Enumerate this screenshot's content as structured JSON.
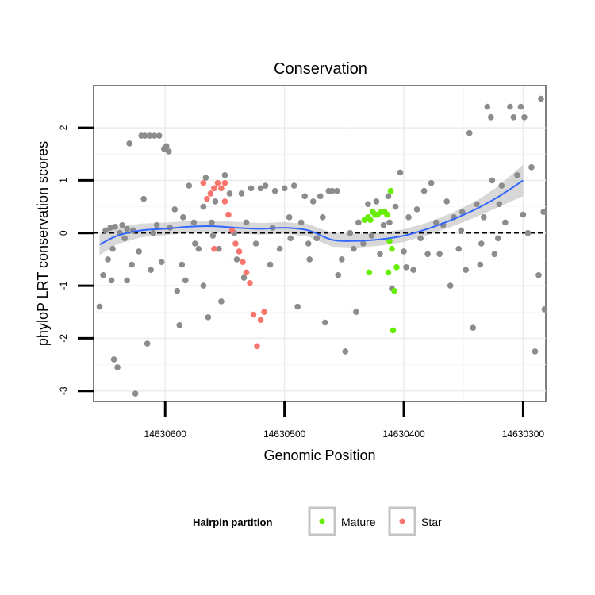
{
  "chart_data": {
    "type": "scatter",
    "title": "Conservation",
    "xlabel": "Genomic Position",
    "ylabel": "phyloP LRT conservation scores",
    "x_reversed": true,
    "xlim": [
      14630660,
      14630281
    ],
    "ylim": [
      -3.2,
      2.8
    ],
    "x_ticks": [
      14630600,
      14630500,
      14630400,
      14630300
    ],
    "x_tick_labels": [
      "14630600",
      "14630500",
      "14630400",
      "14630300"
    ],
    "y_ticks": [
      -3,
      -2,
      -1,
      0,
      1,
      2
    ],
    "y_tick_labels": [
      "-3",
      "-2",
      "-1",
      "0",
      "1",
      "2"
    ],
    "reference_line": {
      "y": 0,
      "style": "dashed"
    },
    "grid": true,
    "legend": {
      "title": "Hairpin partition",
      "position": "bottom",
      "entries": [
        {
          "label": "Mature",
          "color": "#66ee00"
        },
        {
          "label": "Star",
          "color": "#f8766d"
        }
      ]
    },
    "colors": {
      "other": "#8c8c8c",
      "mature": "#66ee00",
      "star": "#f8766d",
      "smooth": "#3366ff",
      "band": "#bebebe"
    },
    "smooth": {
      "x": [
        14630655,
        14630640,
        14630620,
        14630600,
        14630580,
        14630560,
        14630540,
        14630520,
        14630500,
        14630480,
        14630460,
        14630440,
        14630420,
        14630400,
        14630380,
        14630360,
        14630340,
        14630320,
        14630300
      ],
      "y": [
        -0.22,
        -0.05,
        0.05,
        0.08,
        0.12,
        0.13,
        0.1,
        0.08,
        0.1,
        0.05,
        -0.13,
        -0.15,
        -0.12,
        -0.05,
        0.08,
        0.25,
        0.45,
        0.7,
        1.0
      ],
      "se": [
        0.2,
        0.16,
        0.13,
        0.12,
        0.11,
        0.11,
        0.11,
        0.11,
        0.11,
        0.12,
        0.13,
        0.13,
        0.12,
        0.12,
        0.12,
        0.13,
        0.15,
        0.2,
        0.3
      ]
    },
    "series": [
      {
        "name": "Other",
        "points": [
          [
            14630650,
            0.05
          ],
          [
            14630648,
            -0.5
          ],
          [
            14630645,
            -0.9
          ],
          [
            14630643,
            -2.4
          ],
          [
            14630640,
            -2.55
          ],
          [
            14630655,
            -1.4
          ],
          [
            14630652,
            -0.8
          ],
          [
            14630646,
            0.1
          ],
          [
            14630644,
            -0.3
          ],
          [
            14630642,
            0.12
          ],
          [
            14630638,
            0.0
          ],
          [
            14630636,
            0.15
          ],
          [
            14630634,
            -0.1
          ],
          [
            14630632,
            0.08
          ],
          [
            14630630,
            1.7
          ],
          [
            14630628,
            -0.6
          ],
          [
            14630625,
            -3.05
          ],
          [
            14630620,
            1.85
          ],
          [
            14630617,
            1.85
          ],
          [
            14630613,
            1.85
          ],
          [
            14630609,
            1.85
          ],
          [
            14630605,
            1.85
          ],
          [
            14630601,
            1.6
          ],
          [
            14630599,
            1.65
          ],
          [
            14630597,
            1.55
          ],
          [
            14630622,
            -0.35
          ],
          [
            14630618,
            0.65
          ],
          [
            14630615,
            -2.1
          ],
          [
            14630610,
            0.0
          ],
          [
            14630607,
            0.15
          ],
          [
            14630603,
            -0.55
          ],
          [
            14630596,
            0.1
          ],
          [
            14630592,
            0.45
          ],
          [
            14630590,
            -1.1
          ],
          [
            14630588,
            -1.75
          ],
          [
            14630585,
            0.3
          ],
          [
            14630583,
            -0.9
          ],
          [
            14630580,
            0.9
          ],
          [
            14630576,
            0.2
          ],
          [
            14630572,
            -0.3
          ],
          [
            14630568,
            0.5
          ],
          [
            14630566,
            1.05
          ],
          [
            14630564,
            -1.6
          ],
          [
            14630561,
            0.2
          ],
          [
            14630558,
            0.6
          ],
          [
            14630555,
            -0.3
          ],
          [
            14630553,
            -1.3
          ],
          [
            14630550,
            1.1
          ],
          [
            14630546,
            0.75
          ],
          [
            14630542,
            0.0
          ],
          [
            14630540,
            -0.5
          ],
          [
            14630536,
            0.75
          ],
          [
            14630532,
            0.2
          ],
          [
            14630528,
            0.85
          ],
          [
            14630524,
            -0.2
          ],
          [
            14630520,
            0.85
          ],
          [
            14630516,
            0.9
          ],
          [
            14630512,
            -0.6
          ],
          [
            14630508,
            0.8
          ],
          [
            14630504,
            -0.3
          ],
          [
            14630500,
            0.85
          ],
          [
            14630496,
            0.3
          ],
          [
            14630492,
            0.9
          ],
          [
            14630489,
            -1.4
          ],
          [
            14630486,
            0.2
          ],
          [
            14630483,
            0.7
          ],
          [
            14630479,
            -0.5
          ],
          [
            14630476,
            0.6
          ],
          [
            14630473,
            -0.1
          ],
          [
            14630470,
            0.7
          ],
          [
            14630466,
            -1.7
          ],
          [
            14630463,
            0.8
          ],
          [
            14630460,
            0.8
          ],
          [
            14630456,
            0.8
          ],
          [
            14630452,
            -0.5
          ],
          [
            14630449,
            -2.25
          ],
          [
            14630445,
            0.0
          ],
          [
            14630442,
            -0.3
          ],
          [
            14630438,
            0.2
          ],
          [
            14630434,
            -0.2
          ],
          [
            14630430,
            0.55
          ],
          [
            14630427,
            -0.05
          ],
          [
            14630423,
            0.6
          ],
          [
            14630420,
            -0.4
          ],
          [
            14630417,
            0.15
          ],
          [
            14630413,
            0.7
          ],
          [
            14630410,
            -1.05
          ],
          [
            14630407,
            0.5
          ],
          [
            14630403,
            1.15
          ],
          [
            14630400,
            -0.35
          ],
          [
            14630396,
            0.3
          ],
          [
            14630392,
            -0.7
          ],
          [
            14630389,
            0.45
          ],
          [
            14630386,
            -0.1
          ],
          [
            14630383,
            0.8
          ],
          [
            14630380,
            -0.4
          ],
          [
            14630377,
            0.95
          ],
          [
            14630373,
            0.2
          ],
          [
            14630370,
            -0.4
          ],
          [
            14630367,
            0.15
          ],
          [
            14630364,
            0.6
          ],
          [
            14630361,
            -1.0
          ],
          [
            14630358,
            0.3
          ],
          [
            14630354,
            -0.3
          ],
          [
            14630351,
            0.4
          ],
          [
            14630348,
            -0.7
          ],
          [
            14630345,
            1.9
          ],
          [
            14630342,
            -1.8
          ],
          [
            14630339,
            0.55
          ],
          [
            14630336,
            -0.6
          ],
          [
            14630333,
            0.3
          ],
          [
            14630330,
            2.4
          ],
          [
            14630327,
            2.2
          ],
          [
            14630324,
            -0.4
          ],
          [
            14630321,
            -0.1
          ],
          [
            14630318,
            0.9
          ],
          [
            14630315,
            0.2
          ],
          [
            14630311,
            2.4
          ],
          [
            14630308,
            2.2
          ],
          [
            14630305,
            1.1
          ],
          [
            14630302,
            2.4
          ],
          [
            14630299,
            2.2
          ],
          [
            14630296,
            0.0
          ],
          [
            14630293,
            1.25
          ],
          [
            14630290,
            -2.25
          ],
          [
            14630287,
            -0.8
          ],
          [
            14630285,
            2.55
          ],
          [
            14630283,
            0.4
          ],
          [
            14630300,
            0.35
          ],
          [
            14630282,
            -1.45
          ],
          [
            14630326,
            1.0
          ],
          [
            14630335,
            -0.2
          ],
          [
            14630352,
            0.05
          ],
          [
            14630398,
            -0.65
          ],
          [
            14630412,
            0.2
          ],
          [
            14630440,
            -1.5
          ],
          [
            14630468,
            0.3
          ],
          [
            14630480,
            -0.2
          ],
          [
            14630510,
            0.1
          ],
          [
            14630534,
            -0.85
          ],
          [
            14630560,
            -0.05
          ],
          [
            14630586,
            -0.6
          ],
          [
            14630612,
            -0.7
          ],
          [
            14630627,
            0.05
          ],
          [
            14630632,
            -0.9
          ],
          [
            14630568,
            -1.0
          ],
          [
            14630575,
            -0.2
          ],
          [
            14630495,
            -0.1
          ],
          [
            14630455,
            -0.8
          ],
          [
            14630320,
            0.55
          ]
        ]
      },
      {
        "name": "Mature",
        "points": [
          [
            14630433,
            0.25
          ],
          [
            14630430,
            0.3
          ],
          [
            14630428,
            0.25
          ],
          [
            14630426,
            0.4
          ],
          [
            14630424,
            0.35
          ],
          [
            14630422,
            0.35
          ],
          [
            14630419,
            0.4
          ],
          [
            14630416,
            0.4
          ],
          [
            14630414,
            0.35
          ],
          [
            14630412,
            -0.15
          ],
          [
            14630410,
            -0.3
          ],
          [
            14630408,
            -1.1
          ],
          [
            14630406,
            -0.65
          ],
          [
            14630409,
            -1.85
          ],
          [
            14630411,
            0.8
          ],
          [
            14630429,
            -0.75
          ],
          [
            14630413,
            -0.75
          ]
        ]
      },
      {
        "name": "Star",
        "points": [
          [
            14630568,
            0.95
          ],
          [
            14630565,
            0.65
          ],
          [
            14630562,
            0.75
          ],
          [
            14630559,
            0.85
          ],
          [
            14630556,
            0.95
          ],
          [
            14630553,
            0.85
          ],
          [
            14630550,
            0.6
          ],
          [
            14630547,
            0.35
          ],
          [
            14630544,
            0.05
          ],
          [
            14630541,
            -0.2
          ],
          [
            14630538,
            -0.35
          ],
          [
            14630535,
            -0.55
          ],
          [
            14630532,
            -0.75
          ],
          [
            14630529,
            -0.95
          ],
          [
            14630526,
            -1.55
          ],
          [
            14630523,
            -2.15
          ],
          [
            14630520,
            -1.65
          ],
          [
            14630517,
            -1.5
          ],
          [
            14630550,
            0.95
          ],
          [
            14630559,
            -0.3
          ]
        ]
      }
    ]
  }
}
